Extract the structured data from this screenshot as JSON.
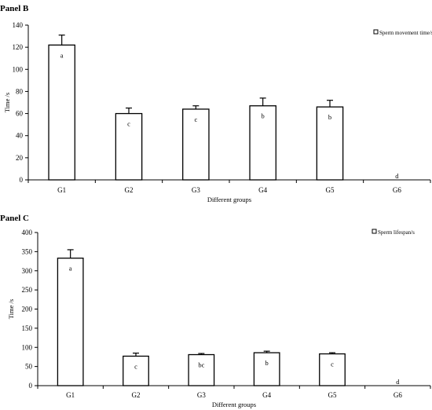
{
  "chart_data": [
    {
      "panel_label": "Panel B",
      "type": "bar",
      "categories": [
        "G1",
        "G2",
        "G3",
        "G4",
        "G5",
        "G6"
      ],
      "series": [
        {
          "name": "Sperm movement time/s",
          "values": [
            122,
            60,
            64,
            67,
            66,
            0
          ],
          "error_plus": [
            9,
            5,
            3,
            7,
            6,
            0
          ],
          "letters": [
            "a",
            "c",
            "c",
            "b",
            "b",
            "d"
          ]
        }
      ],
      "xlabel": "Different groups",
      "ylabel": "Time /s",
      "ylim": [
        0,
        140
      ],
      "yticks": [
        0,
        20,
        40,
        60,
        80,
        100,
        120,
        140
      ],
      "grid": false,
      "legend_position": "top-right"
    },
    {
      "panel_label": "Panel C",
      "type": "bar",
      "categories": [
        "G1",
        "G2",
        "G3",
        "G4",
        "G5",
        "G6"
      ],
      "series": [
        {
          "name": "Sperm lifespan/s",
          "values": [
            333,
            77,
            81,
            86,
            83,
            0
          ],
          "error_plus": [
            22,
            8,
            3,
            4,
            3,
            0
          ],
          "letters": [
            "a",
            "c",
            "bc",
            "b",
            "c",
            "d"
          ]
        }
      ],
      "xlabel": "Different groups",
      "ylabel": "Time /s",
      "ylim": [
        0,
        400
      ],
      "yticks": [
        0,
        50,
        100,
        150,
        200,
        250,
        300,
        350,
        400
      ],
      "grid": false,
      "legend_position": "top-right"
    }
  ]
}
